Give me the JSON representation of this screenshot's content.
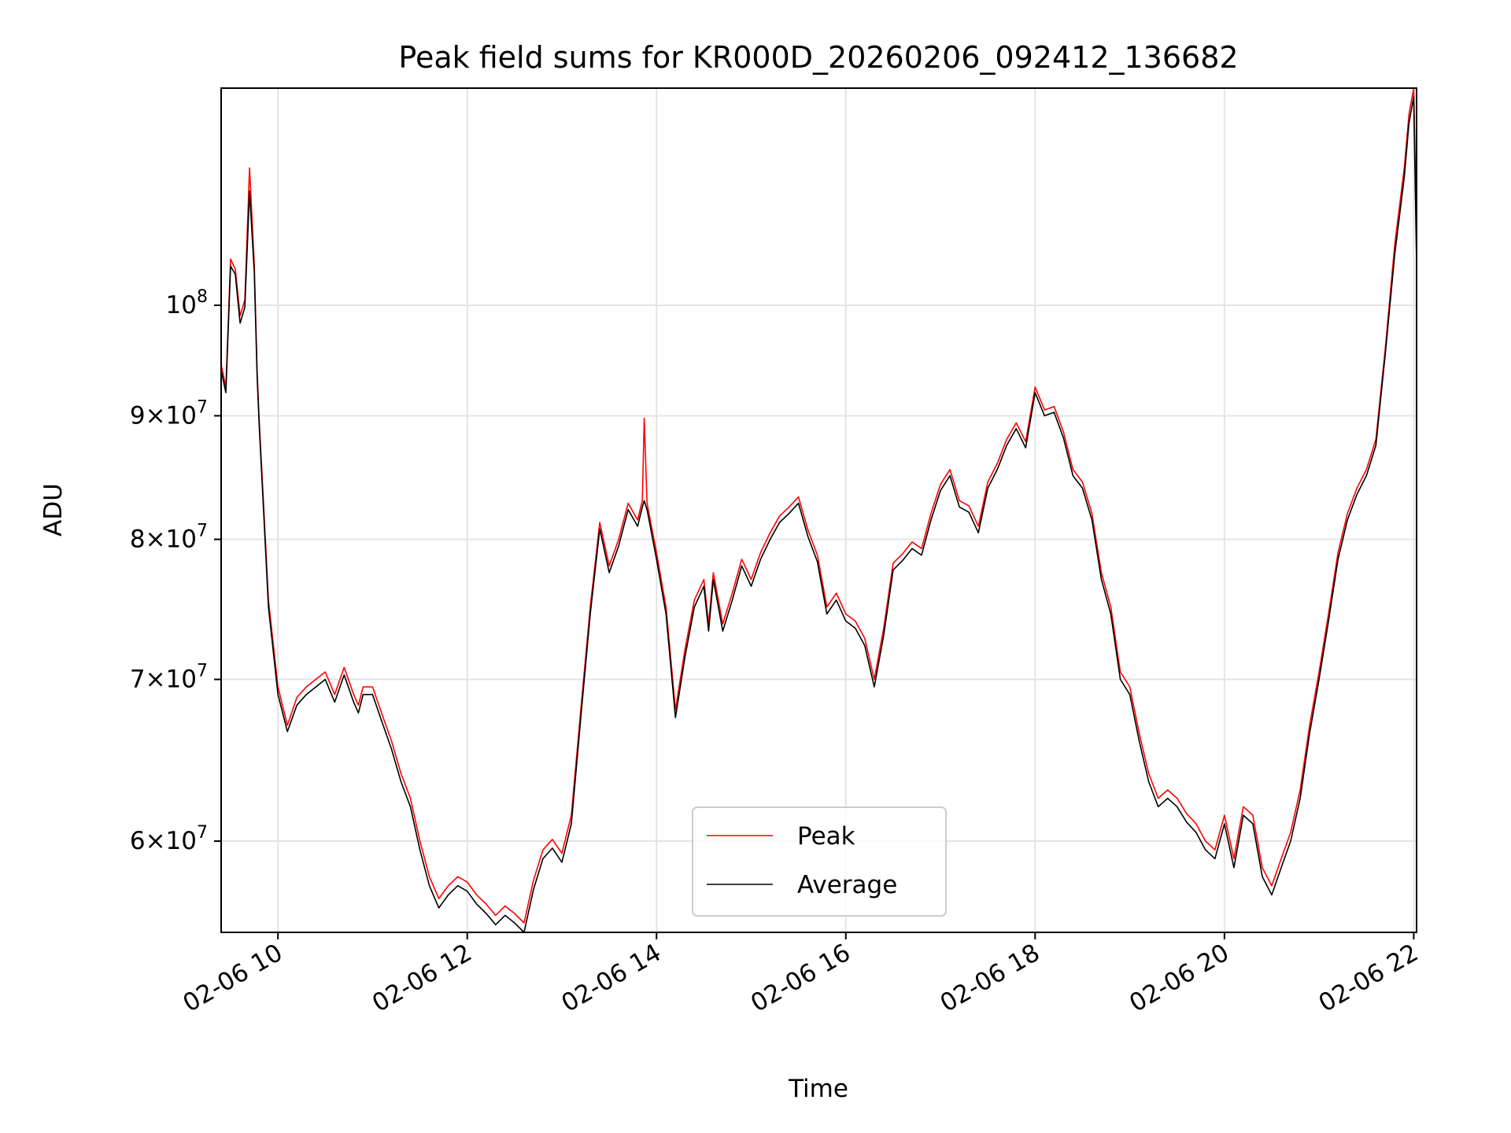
{
  "chart_data": {
    "type": "line",
    "title": "Peak field sums for KR000D_20260206_092412_136682",
    "xlabel": "Time",
    "ylabel": "ADU",
    "x_unit": "hours of day 2026-02-06",
    "x_ticks": [
      {
        "value": 10,
        "label": "02-06 10"
      },
      {
        "value": 12,
        "label": "02-06 12"
      },
      {
        "value": 14,
        "label": "02-06 14"
      },
      {
        "value": 16,
        "label": "02-06 16"
      },
      {
        "value": 18,
        "label": "02-06 18"
      },
      {
        "value": 20,
        "label": "02-06 20"
      },
      {
        "value": 22,
        "label": "02-06 22"
      }
    ],
    "y_ticks": [
      {
        "value": 60000000,
        "mantissa": "6",
        "exp": "7"
      },
      {
        "value": 70000000,
        "mantissa": "7",
        "exp": "7"
      },
      {
        "value": 80000000,
        "mantissa": "8",
        "exp": "7"
      },
      {
        "value": 90000000,
        "mantissa": "9",
        "exp": "7"
      },
      {
        "value": 100000000,
        "mantissa": "",
        "exp": "8"
      }
    ],
    "xlim": [
      9.4,
      22.03
    ],
    "ylim": [
      55000000,
      123000000
    ],
    "yscale": "log",
    "grid": true,
    "legend": {
      "position": "lower center",
      "entries": [
        "Peak",
        "Average"
      ]
    },
    "colors": {
      "Peak": "#ff0000",
      "Average": "#000000"
    },
    "series": [
      {
        "name": "Peak",
        "x": [
          9.4,
          9.45,
          9.5,
          9.55,
          9.6,
          9.65,
          9.7,
          9.75,
          9.78,
          9.8,
          9.85,
          9.9,
          10.0,
          10.1,
          10.2,
          10.3,
          10.5,
          10.6,
          10.7,
          10.8,
          10.85,
          10.9,
          11.0,
          11.1,
          11.2,
          11.3,
          11.4,
          11.5,
          11.6,
          11.7,
          11.8,
          11.9,
          12.0,
          12.1,
          12.2,
          12.3,
          12.4,
          12.5,
          12.6,
          12.7,
          12.8,
          12.9,
          13.0,
          13.1,
          13.2,
          13.3,
          13.4,
          13.5,
          13.6,
          13.7,
          13.8,
          13.85,
          13.87,
          13.9,
          14.0,
          14.1,
          14.2,
          14.3,
          14.4,
          14.5,
          14.55,
          14.6,
          14.7,
          14.8,
          14.9,
          15.0,
          15.1,
          15.2,
          15.3,
          15.4,
          15.5,
          15.6,
          15.7,
          15.8,
          15.9,
          16.0,
          16.1,
          16.2,
          16.3,
          16.4,
          16.5,
          16.6,
          16.7,
          16.8,
          16.9,
          17.0,
          17.1,
          17.2,
          17.3,
          17.4,
          17.5,
          17.6,
          17.7,
          17.8,
          17.9,
          18.0,
          18.1,
          18.2,
          18.3,
          18.4,
          18.5,
          18.6,
          18.7,
          18.8,
          18.9,
          19.0,
          19.1,
          19.2,
          19.3,
          19.4,
          19.5,
          19.6,
          19.7,
          19.8,
          19.9,
          20.0,
          20.1,
          20.2,
          20.3,
          20.4,
          20.5,
          20.6,
          20.7,
          20.8,
          20.9,
          21.0,
          21.1,
          21.2,
          21.3,
          21.4,
          21.5,
          21.6,
          21.7,
          21.8,
          21.9,
          21.95,
          22.0,
          22.03
        ],
        "y": [
          94500000,
          92500000,
          104500000,
          103500000,
          99000000,
          100500000,
          114000000,
          104000000,
          94000000,
          90000000,
          82500000,
          75500000,
          69500000,
          67000000,
          68800000,
          69500000,
          70500000,
          69000000,
          70800000,
          69000000,
          68300000,
          69500000,
          69500000,
          67700000,
          66000000,
          64000000,
          62500000,
          60000000,
          58000000,
          56800000,
          57500000,
          58000000,
          57700000,
          57000000,
          56500000,
          55900000,
          56400000,
          56000000,
          55500000,
          57800000,
          59500000,
          60100000,
          59300000,
          61500000,
          68000000,
          75000000,
          81300000,
          78000000,
          80000000,
          82800000,
          81500000,
          83000000,
          89800000,
          82800000,
          79000000,
          75000000,
          68000000,
          72000000,
          75500000,
          77000000,
          73800000,
          77500000,
          73800000,
          76000000,
          78500000,
          77000000,
          79000000,
          80500000,
          81800000,
          82500000,
          83300000,
          80700000,
          78800000,
          75000000,
          76000000,
          74500000,
          74000000,
          72800000,
          70000000,
          73500000,
          78200000,
          78900000,
          79800000,
          79300000,
          82000000,
          84300000,
          85500000,
          83000000,
          82600000,
          81000000,
          84500000,
          86000000,
          88000000,
          89400000,
          87800000,
          92500000,
          90500000,
          90800000,
          88600000,
          85500000,
          84500000,
          82000000,
          77500000,
          75000000,
          70500000,
          69500000,
          66500000,
          64000000,
          62500000,
          63000000,
          62500000,
          61600000,
          61000000,
          60000000,
          59500000,
          61500000,
          59000000,
          62000000,
          61500000,
          58500000,
          57500000,
          59000000,
          60500000,
          63000000,
          67000000,
          70500000,
          74500000,
          79000000,
          82000000,
          84000000,
          85500000,
          88000000,
          96000000,
          106000000,
          114000000,
          120000000,
          123000000,
          106000000
        ]
      },
      {
        "name": "Average",
        "x": [
          9.4,
          9.45,
          9.5,
          9.55,
          9.6,
          9.65,
          9.7,
          9.75,
          9.78,
          9.8,
          9.85,
          9.9,
          10.0,
          10.1,
          10.2,
          10.3,
          10.5,
          10.6,
          10.7,
          10.8,
          10.85,
          10.9,
          11.0,
          11.1,
          11.2,
          11.3,
          11.4,
          11.5,
          11.6,
          11.7,
          11.8,
          11.9,
          12.0,
          12.1,
          12.2,
          12.3,
          12.4,
          12.5,
          12.6,
          12.7,
          12.8,
          12.9,
          13.0,
          13.1,
          13.2,
          13.3,
          13.4,
          13.5,
          13.6,
          13.7,
          13.8,
          13.85,
          13.87,
          13.9,
          14.0,
          14.1,
          14.2,
          14.3,
          14.4,
          14.5,
          14.55,
          14.6,
          14.7,
          14.8,
          14.9,
          15.0,
          15.1,
          15.2,
          15.3,
          15.4,
          15.5,
          15.6,
          15.7,
          15.8,
          15.9,
          16.0,
          16.1,
          16.2,
          16.3,
          16.4,
          16.5,
          16.6,
          16.7,
          16.8,
          16.9,
          17.0,
          17.1,
          17.2,
          17.3,
          17.4,
          17.5,
          17.6,
          17.7,
          17.8,
          17.9,
          18.0,
          18.1,
          18.2,
          18.3,
          18.4,
          18.5,
          18.6,
          18.7,
          18.8,
          18.9,
          19.0,
          19.1,
          19.2,
          19.3,
          19.4,
          19.5,
          19.6,
          19.7,
          19.8,
          19.9,
          20.0,
          20.1,
          20.2,
          20.3,
          20.4,
          20.5,
          20.6,
          20.7,
          20.8,
          20.9,
          21.0,
          21.1,
          21.2,
          21.3,
          21.4,
          21.5,
          21.6,
          21.7,
          21.8,
          21.9,
          21.95,
          22.0,
          22.03
        ],
        "y": [
          94000000,
          92000000,
          103800000,
          103000000,
          98300000,
          99800000,
          111500000,
          103200000,
          93500000,
          89500000,
          82000000,
          75000000,
          69000000,
          66600000,
          68300000,
          69000000,
          70000000,
          68500000,
          70300000,
          68500000,
          67800000,
          69000000,
          69000000,
          67200000,
          65500000,
          63500000,
          62000000,
          59500000,
          57500000,
          56300000,
          57000000,
          57500000,
          57200000,
          56500000,
          56000000,
          55400000,
          55900000,
          55500000,
          55000000,
          57300000,
          59000000,
          59600000,
          58800000,
          61000000,
          67500000,
          74500000,
          80800000,
          77500000,
          79500000,
          82300000,
          81000000,
          82500000,
          83000000,
          82300000,
          78500000,
          74500000,
          67500000,
          71500000,
          75000000,
          76500000,
          73300000,
          77000000,
          73300000,
          75500000,
          78000000,
          76500000,
          78500000,
          80000000,
          81300000,
          82000000,
          82800000,
          80200000,
          78300000,
          74500000,
          75500000,
          74000000,
          73500000,
          72300000,
          69500000,
          73000000,
          77700000,
          78400000,
          79300000,
          78800000,
          81500000,
          83800000,
          85000000,
          82500000,
          82100000,
          80500000,
          84000000,
          85500000,
          87500000,
          88900000,
          87300000,
          92000000,
          90000000,
          90300000,
          88100000,
          85000000,
          84000000,
          81500000,
          77000000,
          74500000,
          70000000,
          69000000,
          66000000,
          63500000,
          62000000,
          62500000,
          62000000,
          61100000,
          60500000,
          59500000,
          59000000,
          61000000,
          58500000,
          61500000,
          61000000,
          58000000,
          57000000,
          58500000,
          60000000,
          62500000,
          66500000,
          70000000,
          74000000,
          78500000,
          81500000,
          83500000,
          85000000,
          87500000,
          95500000,
          105000000,
          113000000,
          119000000,
          122000000,
          104000000
        ]
      }
    ]
  }
}
